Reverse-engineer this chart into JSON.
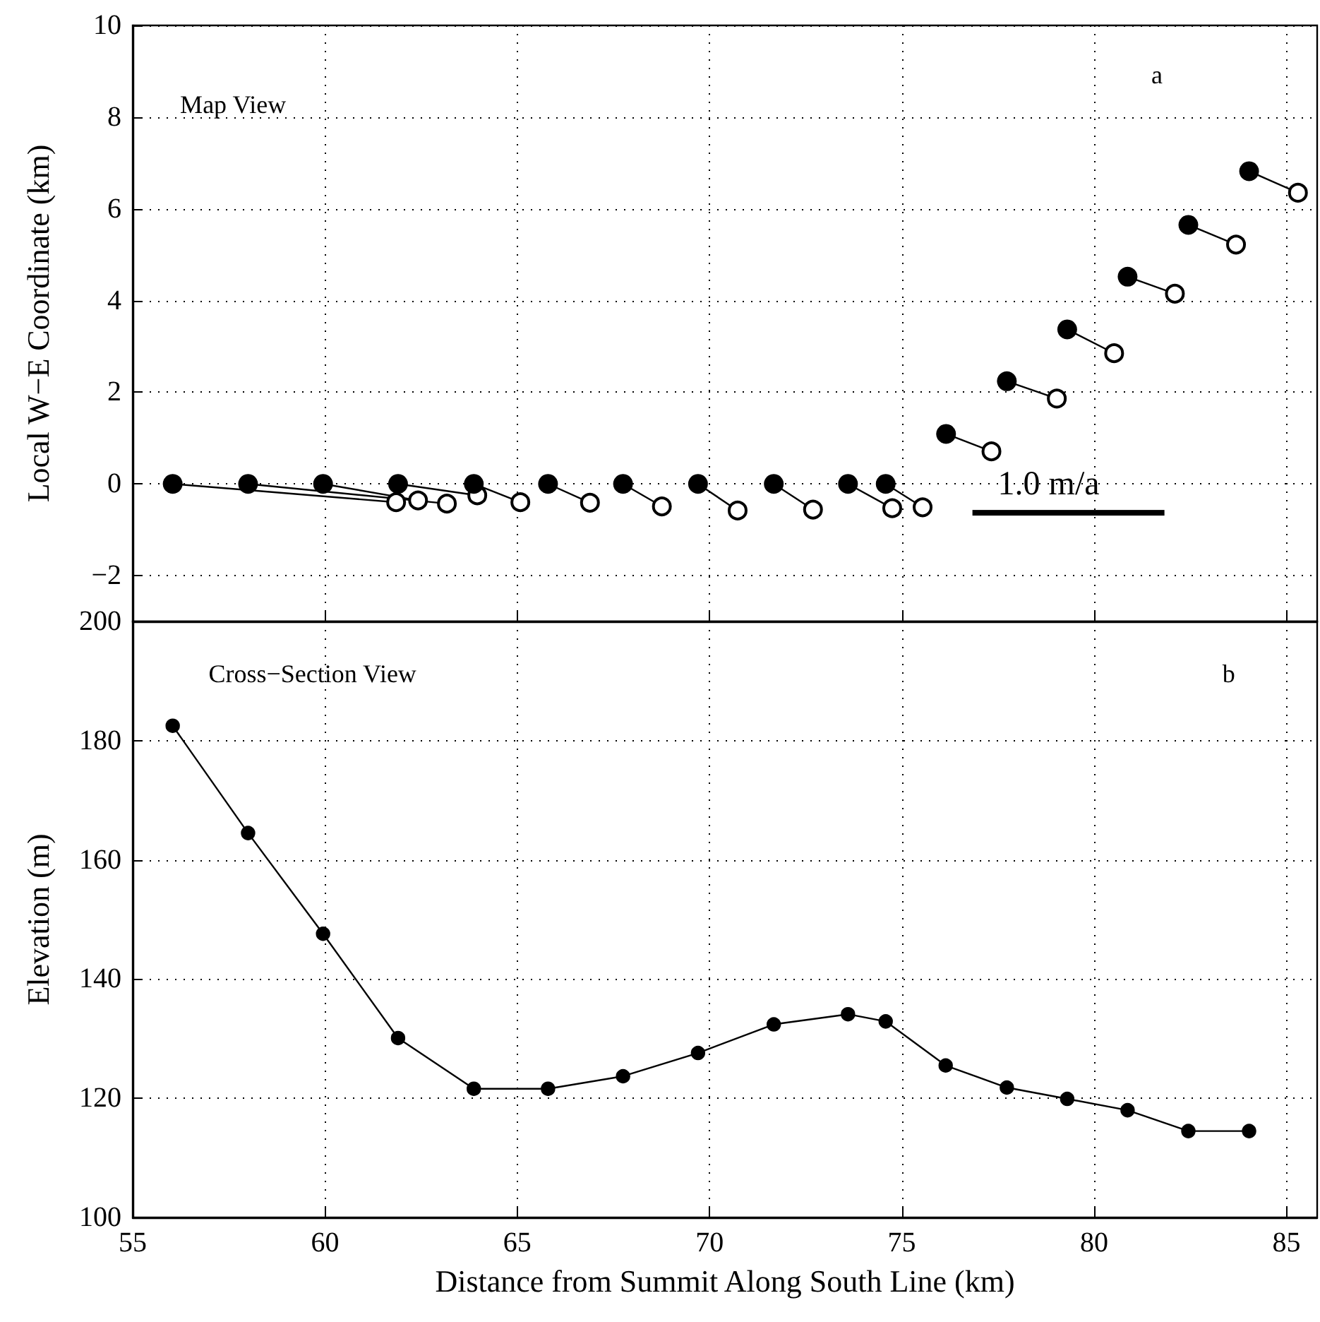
{
  "chart_data": [
    {
      "type": "line",
      "ylabel": "Local W−E Coordinate (km)",
      "annotations": [
        "Map View",
        "a",
        "1.0 m/a"
      ],
      "xlim": [
        55,
        85.8
      ],
      "xticks": [
        55,
        60,
        65,
        70,
        75,
        80,
        85
      ],
      "ylim": [
        -3,
        10
      ],
      "yticks": [
        -2,
        0,
        2,
        4,
        6,
        8,
        10
      ],
      "grid": true,
      "tick_labels": "y",
      "series": [
        {
          "color": "#000000",
          "marker": "circle",
          "x": [
            56.04,
            61.85
          ],
          "values": [
            0,
            -0.4
          ]
        },
        {
          "color": "#000000",
          "marker": "circle",
          "x": [
            58.0,
            63.17
          ],
          "values": [
            0,
            -0.43
          ]
        },
        {
          "color": "#000000",
          "marker": "circle",
          "x": [
            59.95,
            62.42
          ],
          "values": [
            0,
            -0.36
          ]
        },
        {
          "color": "#000000",
          "marker": "circle",
          "x": [
            61.9,
            63.96
          ],
          "values": [
            0,
            -0.25
          ]
        },
        {
          "color": "#000000",
          "marker": "circle",
          "x": [
            63.87,
            65.08
          ],
          "values": [
            0,
            -0.4
          ]
        },
        {
          "color": "#000000",
          "marker": "circle",
          "x": [
            65.8,
            66.89
          ],
          "values": [
            0,
            -0.41
          ]
        },
        {
          "color": "#000000",
          "marker": "circle",
          "x": [
            67.75,
            68.76
          ],
          "values": [
            0,
            -0.49
          ]
        },
        {
          "color": "#000000",
          "marker": "circle",
          "x": [
            69.7,
            70.73
          ],
          "values": [
            0,
            -0.58
          ]
        },
        {
          "color": "#000000",
          "marker": "circle",
          "x": [
            71.67,
            72.69
          ],
          "values": [
            0,
            -0.56
          ]
        },
        {
          "color": "#000000",
          "marker": "circle",
          "x": [
            73.6,
            74.75
          ],
          "values": [
            0,
            -0.53
          ]
        },
        {
          "color": "#000000",
          "marker": "circle",
          "x": [
            74.58,
            75.54
          ],
          "values": [
            0,
            -0.51
          ]
        },
        {
          "color": "#000000",
          "marker": "circle",
          "x": [
            76.15,
            77.33
          ],
          "values": [
            1.09,
            0.71
          ]
        },
        {
          "color": "#000000",
          "marker": "circle",
          "x": [
            77.73,
            79.03
          ],
          "values": [
            2.24,
            1.86
          ]
        },
        {
          "color": "#000000",
          "marker": "circle",
          "x": [
            79.3,
            80.52
          ],
          "values": [
            3.37,
            2.85
          ]
        },
        {
          "color": "#000000",
          "marker": "circle",
          "x": [
            80.87,
            82.1
          ],
          "values": [
            4.52,
            4.15
          ]
        },
        {
          "color": "#000000",
          "marker": "circle",
          "x": [
            82.45,
            83.69
          ],
          "values": [
            5.65,
            5.22
          ]
        },
        {
          "color": "#000000",
          "marker": "circle",
          "x": [
            84.03,
            85.3
          ],
          "values": [
            6.82,
            6.35
          ]
        },
        {
          "type": "scatter",
          "color": "#000000",
          "marker": "circle",
          "x": [
            56.04,
            58.0,
            59.95,
            61.9,
            63.87,
            65.8,
            67.75,
            69.7,
            71.67,
            73.6,
            74.58,
            76.15,
            77.73,
            79.3,
            80.87,
            82.45,
            84.03
          ],
          "values": [
            0,
            0,
            0,
            0,
            0,
            0,
            0,
            0,
            0,
            0,
            0,
            1.09,
            2.24,
            3.37,
            4.52,
            5.65,
            6.82
          ]
        }
      ]
    },
    {
      "type": "line",
      "xlabel": "Distance from Summit Along South Line (km)",
      "ylabel": "Elevation (m)",
      "annotations": [
        "Cross−Section View",
        "b"
      ],
      "xlim": [
        55,
        85.8
      ],
      "xticks": [
        55,
        60,
        65,
        70,
        75,
        80,
        85
      ],
      "ylim": [
        100,
        200
      ],
      "yticks": [
        100,
        120,
        140,
        160,
        180,
        200
      ],
      "grid": true,
      "marker": "circle",
      "line_style": "solid",
      "series": [
        {
          "color": "#000000",
          "x": [
            56.04,
            58.0,
            59.95,
            61.9,
            63.87,
            65.8,
            67.75,
            69.7,
            71.67,
            73.6,
            74.58,
            76.14,
            77.73,
            79.3,
            80.87,
            82.45,
            84.03
          ],
          "values": [
            182.5,
            164.5,
            147.6,
            130.1,
            121.6,
            121.6,
            123.7,
            127.6,
            132.4,
            134.1,
            132.9,
            125.5,
            121.8,
            119.9,
            118.0,
            114.5,
            114.5
          ]
        }
      ]
    }
  ]
}
